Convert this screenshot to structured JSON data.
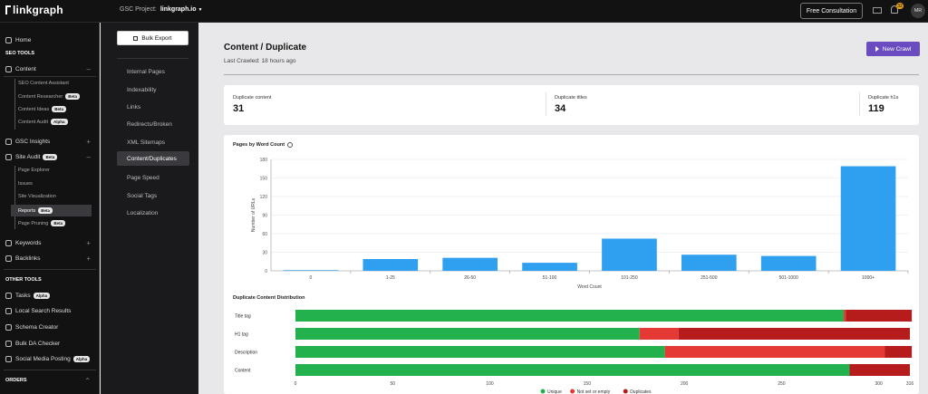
{
  "topbar": {
    "logo_text": "linkgraph",
    "gsc_label": "GSC Project:",
    "gsc_value": "linkgraph.io",
    "consult_label": "Free Consultation",
    "notification_count": "32",
    "avatar_initials": "MR"
  },
  "sidebar": {
    "home": "Home",
    "seo_tools_heading": "SEO TOOLS",
    "content": "Content",
    "content_sub": [
      {
        "label": "SEO Content Assistant",
        "badge": ""
      },
      {
        "label": "Content Researcher",
        "badge": "Beta"
      },
      {
        "label": "Content Ideas",
        "badge": "Beta"
      },
      {
        "label": "Content Audit",
        "badge": "Alpha"
      }
    ],
    "gsc_insights": "GSC Insights",
    "site_audit": "Site Audit",
    "site_audit_badge": "Beta",
    "site_audit_sub": [
      {
        "label": "Page Explorer",
        "badge": ""
      },
      {
        "label": "Issues",
        "badge": ""
      },
      {
        "label": "Site Visualization",
        "badge": ""
      },
      {
        "label": "Reports",
        "badge": "Beta"
      },
      {
        "label": "Page Pruning",
        "badge": "Beta"
      }
    ],
    "keywords": "Keywords",
    "backlinks": "Backlinks",
    "other_tools_heading": "OTHER TOOLS",
    "tasks": "Tasks",
    "tasks_badge": "Alpha",
    "local_search": "Local Search Results",
    "schema_creator": "Schema Creator",
    "bulk_da": "Bulk DA Checker",
    "social_media": "Social Media Posting",
    "social_badge": "Alpha",
    "orders_heading": "ORDERS"
  },
  "subnav": {
    "bulk_export": "Bulk Export",
    "items": [
      "Internal Pages",
      "Indexability",
      "Links",
      "Redirects/Broken",
      "XML Sitemaps",
      "Content/Duplicates",
      "Page Speed",
      "Social Tags",
      "Localization"
    ]
  },
  "main": {
    "title": "Content / Duplicate",
    "last_crawled": "Last Crawled: 18 hours ago",
    "new_crawl": "New Crawl",
    "stats": [
      {
        "label": "Duplicate content",
        "value": "31"
      },
      {
        "label": "Duplicate titles",
        "value": "34"
      },
      {
        "label": "Duplicate h1s",
        "value": "119"
      }
    ]
  },
  "chart_data": [
    {
      "type": "bar",
      "title": "Pages by Word Count",
      "xlabel": "Word Count",
      "ylabel": "Number of URLs",
      "categories": [
        "0",
        "1-25",
        "26-50",
        "51-100",
        "101-250",
        "251-500",
        "501-1000",
        "1000+"
      ],
      "values": [
        1,
        19,
        21,
        13,
        52,
        26,
        24,
        169
      ],
      "ylim": [
        0,
        180
      ],
      "yticks": [
        "0",
        "30",
        "60",
        "90",
        "120",
        "150",
        "180"
      ],
      "color": "#2f9ff0"
    },
    {
      "type": "bar",
      "orientation": "horizontal",
      "stacked": true,
      "title": "Duplicate Content Distribution",
      "categories": [
        "Title tag",
        "H1 tag",
        "Description",
        "Content"
      ],
      "series": [
        {
          "name": "Unique",
          "values": [
            282,
            177,
            190,
            285
          ],
          "color": "#22b14c"
        },
        {
          "name": "Not set or empty",
          "values": [
            1,
            20,
            113,
            0
          ],
          "color": "#e53935"
        },
        {
          "name": "Duplicates",
          "values": [
            34,
            119,
            14,
            31
          ],
          "color": "#b71c1c"
        }
      ],
      "xlim": [
        0,
        316
      ],
      "xticks": [
        "0",
        "50",
        "100",
        "150",
        "200",
        "250",
        "300",
        "316"
      ],
      "legend": "bottom"
    }
  ]
}
